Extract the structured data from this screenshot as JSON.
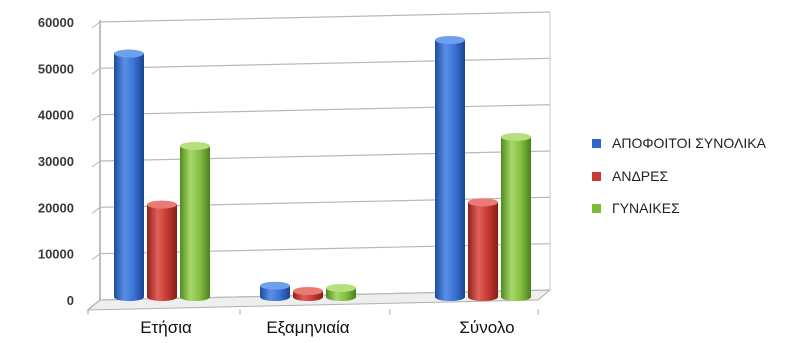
{
  "chart_data": {
    "type": "bar",
    "categories": [
      "Ετήσια",
      "Εξαμηνιαία",
      "Σύνολο"
    ],
    "series": [
      {
        "name": "ΑΠΟΦΟΙΤΟΙ ΣΥΝΟΛΙΚΑ",
        "values": [
          54000,
          2500,
          57000
        ],
        "color": "#2f67c9"
      },
      {
        "name": "ΑΝΔΡΕΣ",
        "values": [
          20500,
          500,
          21000
        ],
        "color": "#c83a32"
      },
      {
        "name": "ΓΥΝΑΙΚΕΣ",
        "values": [
          33500,
          2000,
          35500
        ],
        "color": "#7fb83a"
      }
    ],
    "y_ticks": [
      0,
      10000,
      20000,
      30000,
      40000,
      50000,
      60000
    ],
    "ylim": [
      0,
      60000
    ],
    "grid": true,
    "legend_position": "right"
  }
}
